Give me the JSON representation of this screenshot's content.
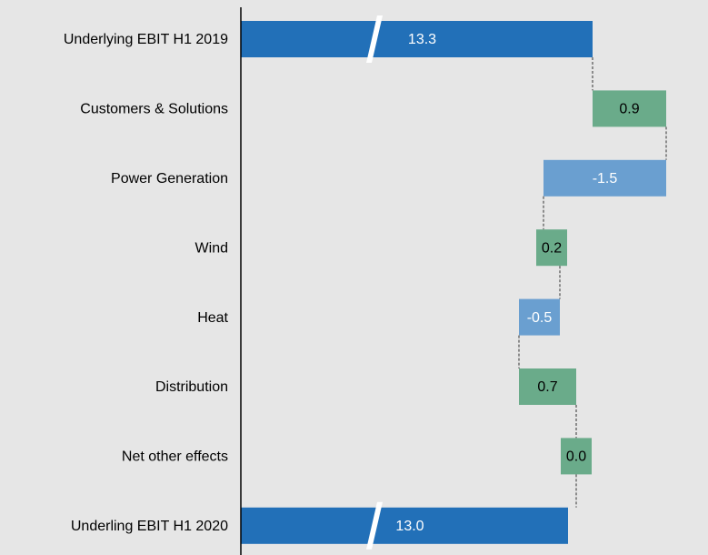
{
  "chart_data": {
    "type": "waterfall",
    "categories": [
      "Underlying EBIT H1 2019",
      "Customers & Solutions",
      "Power Generation",
      "Wind",
      "Heat",
      "Distribution",
      "Net other effects",
      "Underling EBIT H1 2020"
    ],
    "values": [
      13.3,
      0.9,
      -1.5,
      0.2,
      -0.5,
      0.7,
      0.0,
      13.0
    ],
    "value_labels": [
      "13.3",
      "0.9",
      "-1.5",
      "0.2",
      "-0.5",
      "0.7",
      "0.0",
      "13.0"
    ],
    "measure": [
      "absolute",
      "relative",
      "relative",
      "relative",
      "relative",
      "relative",
      "relative",
      "absolute"
    ],
    "colors": {
      "total": "#2270b8",
      "increase": "#6aab8a",
      "decrease": "#6a9fd0"
    },
    "xlim": [
      9,
      14.5
    ],
    "axis_break": true
  }
}
